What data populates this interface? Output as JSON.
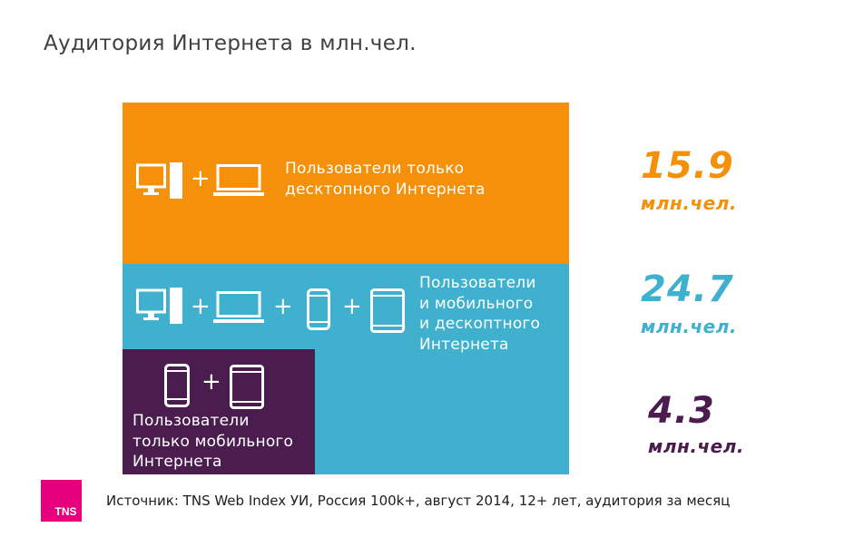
{
  "title": "Аудитория Интернета в млн.чел.",
  "colors": {
    "desktop_only": "#f5900a",
    "mobile_and_desktop": "#3fb0ce",
    "mobile_only": "#4a1d4e",
    "logo": "#e6007e"
  },
  "chart_data": {
    "type": "table",
    "title": "Аудитория Интернета в млн.чел.",
    "series": [
      {
        "name": "Пользователи только\nдесктопного Интернета",
        "value": 15.9,
        "display": "15.9",
        "unit": "млн.чел.",
        "color": "#f5900a",
        "icons": [
          "desktop-icon",
          "plus",
          "laptop-icon"
        ]
      },
      {
        "name": "Пользователи\nи мобильного\nи дескоптного\nИнтернета",
        "value": 24.7,
        "display": "24.7",
        "unit": "млн.чел.",
        "color": "#3fb0ce",
        "icons": [
          "desktop-icon",
          "plus",
          "laptop-icon",
          "plus",
          "smartphone-icon",
          "plus",
          "tablet-icon"
        ]
      },
      {
        "name": "Пользователи\nтолько мобильного\nИнтернета",
        "value": 4.3,
        "display": "4.3",
        "unit": "млн.чел.",
        "color": "#4a1d4e",
        "icons": [
          "smartphone-icon",
          "plus",
          "tablet-icon"
        ]
      }
    ]
  },
  "plus_sign": "+",
  "logo_text": "TNS",
  "source": "Источник: TNS Web Index УИ, Россия 100k+, август 2014, 12+ лет, аудитория за месяц"
}
